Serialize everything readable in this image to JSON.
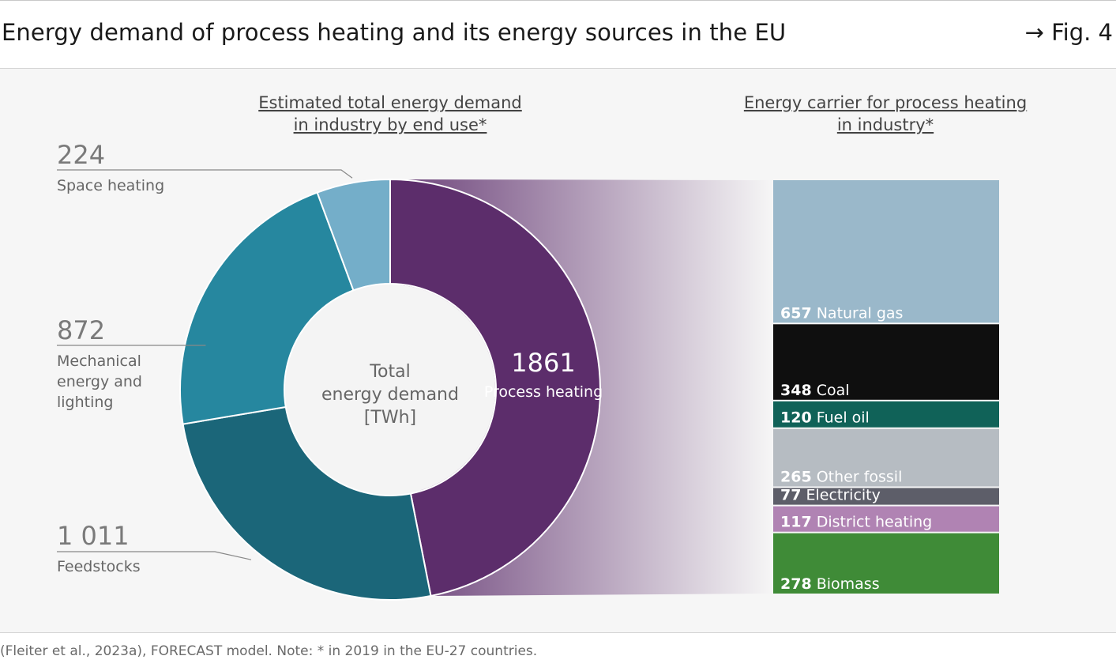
{
  "header": {
    "title": "Energy demand of process heating and its energy sources in the EU",
    "fig_ref": "→ Fig. 4"
  },
  "source_note": "(Fleiter et al., 2023a), FORECAST model. Note: * in 2019 in the EU-27 countries.",
  "chart_data": [
    {
      "type": "pie",
      "title": [
        "Estimated total energy demand",
        "in industry by end use*"
      ],
      "center_label": [
        "Total",
        "energy demand",
        "[TWh]"
      ],
      "slices": [
        {
          "label": "Process heating",
          "value": 1861,
          "value_text": "1861",
          "color": "#5c2d6b"
        },
        {
          "label": "Feedstocks",
          "value": 1011,
          "value_text": "1 011",
          "color": "#1b6679"
        },
        {
          "label": "Mechanical energy and lighting",
          "label_lines": [
            "Mechanical",
            "energy and",
            "lighting"
          ],
          "value": 872,
          "value_text": "872",
          "color": "#26879f"
        },
        {
          "label": "Space heating",
          "value": 224,
          "value_text": "224",
          "color": "#74aec9"
        }
      ]
    },
    {
      "type": "bar",
      "stacked": true,
      "title": [
        "Energy carrier for process heating",
        "in industry*"
      ],
      "segments": [
        {
          "label": "Natural gas",
          "value": 657,
          "color": "#9ab8ca"
        },
        {
          "label": "Coal",
          "value": 348,
          "color": "#0f0f0f"
        },
        {
          "label": "Fuel oil",
          "value": 120,
          "color": "#106258"
        },
        {
          "label": "Other fossil",
          "value": 265,
          "color": "#b6bcc2"
        },
        {
          "label": "Electricity",
          "value": 77,
          "color": "#5d5e69"
        },
        {
          "label": "District heating",
          "value": 117,
          "color": "#b083b3"
        },
        {
          "label": "Biomass",
          "value": 278,
          "color": "#3f8b37"
        }
      ]
    }
  ]
}
